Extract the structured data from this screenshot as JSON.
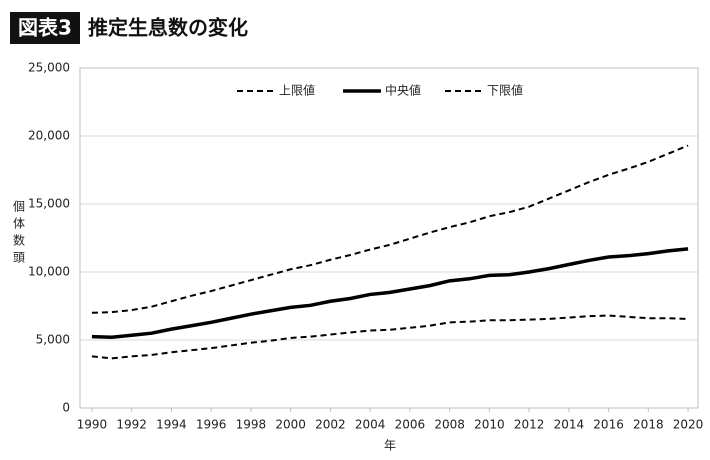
{
  "chart_data": {
    "type": "line",
    "badge": "図表3",
    "title": "推定生息数の変化",
    "x_label": "年",
    "y_label": "個体数頭",
    "x": [
      1990,
      1991,
      1992,
      1993,
      1994,
      1995,
      1996,
      1997,
      1998,
      1999,
      2000,
      2001,
      2002,
      2003,
      2004,
      2005,
      2006,
      2007,
      2008,
      2009,
      2010,
      2011,
      2012,
      2013,
      2014,
      2015,
      2016,
      2017,
      2018,
      2019,
      2020
    ],
    "series": [
      {
        "name": "上限値",
        "color": "#000000",
        "dashed": true,
        "values": [
          7000,
          7050,
          7200,
          7450,
          7850,
          8250,
          8600,
          9000,
          9400,
          9800,
          10200,
          10500,
          10900,
          11250,
          11650,
          12000,
          12450,
          12900,
          13300,
          13650,
          14100,
          14400,
          14800,
          15400,
          16000,
          16600,
          17150,
          17600,
          18100,
          18700,
          19300
        ]
      },
      {
        "name": "中央値",
        "color": "#000000",
        "dashed": false,
        "values": [
          5250,
          5200,
          5350,
          5500,
          5800,
          6050,
          6300,
          6600,
          6900,
          7150,
          7400,
          7550,
          7850,
          8050,
          8350,
          8500,
          8750,
          9000,
          9350,
          9500,
          9750,
          9800,
          10000,
          10250,
          10550,
          10850,
          11100,
          11200,
          11350,
          11550,
          11700
        ]
      },
      {
        "name": "下限値",
        "color": "#000000",
        "dashed": true,
        "values": [
          3800,
          3650,
          3800,
          3900,
          4100,
          4250,
          4400,
          4600,
          4800,
          4950,
          5150,
          5250,
          5400,
          5550,
          5700,
          5750,
          5900,
          6050,
          6300,
          6350,
          6450,
          6450,
          6500,
          6550,
          6650,
          6750,
          6800,
          6700,
          6600,
          6600,
          6550
        ]
      }
    ],
    "xlim": [
      1989.4,
      2020.5
    ],
    "xticks": [
      1990,
      1992,
      1994,
      1996,
      1998,
      2000,
      2002,
      2004,
      2006,
      2008,
      2010,
      2012,
      2014,
      2016,
      2018,
      2020
    ],
    "ylim": [
      0,
      25000
    ],
    "yticks": [
      0,
      {
        "value": 5000,
        "label": "5,000"
      },
      {
        "value": 10000,
        "label": "10,000"
      },
      {
        "value": 15000,
        "label": "15,000"
      },
      {
        "value": 20000,
        "label": "20,000"
      },
      {
        "value": 25000,
        "label": "25,000"
      }
    ],
    "grid": true,
    "legend": "top"
  }
}
